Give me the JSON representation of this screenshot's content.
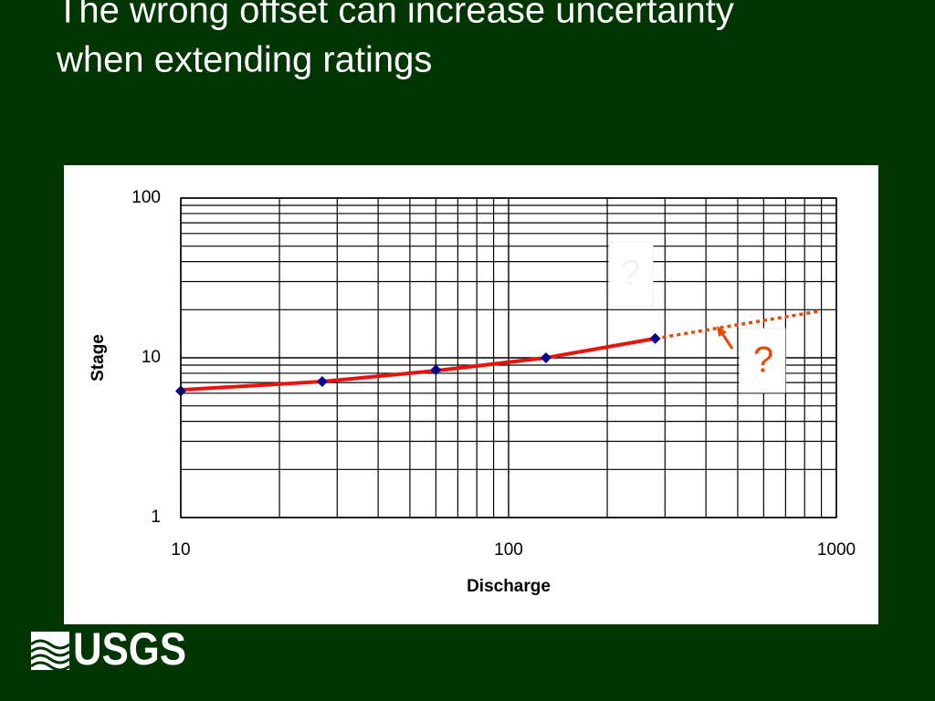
{
  "title_lines": [
    "The wrong offset can increase uncertainty",
    "when extending ratings"
  ],
  "logo_text": "USGS",
  "chart_data": {
    "type": "line",
    "x_label": "Discharge",
    "y_label": "Stage",
    "x_log": true,
    "y_log": true,
    "grid": true,
    "xlim": [
      10,
      1000
    ],
    "ylim": [
      1,
      100
    ],
    "xticks": [
      10,
      100,
      1000
    ],
    "yticks": [
      1,
      10,
      100
    ],
    "x_minor_grid": [
      20,
      30,
      40,
      50,
      60,
      70,
      80,
      90,
      200,
      300,
      400,
      500,
      600,
      700,
      800,
      900
    ],
    "y_minor_grid": [
      2,
      3,
      4,
      5,
      6,
      7,
      8,
      9,
      20,
      30,
      40,
      50,
      60,
      70,
      80,
      90
    ],
    "series": [
      {
        "style": "markers",
        "color": "#00008b",
        "x": [
          10,
          27,
          60,
          130,
          280
        ],
        "values": [
          6.2,
          7.1,
          8.4,
          10,
          13.2
        ]
      },
      {
        "style": "solid",
        "color": "#e8140c",
        "x": [
          10,
          27,
          60,
          130,
          280
        ],
        "values": [
          6.3,
          7.1,
          8.3,
          10,
          13.2
        ]
      },
      {
        "style": "dotted",
        "color": "#e8460c",
        "x": [
          280,
          890
        ],
        "values": [
          13.2,
          19.6
        ]
      }
    ],
    "annotations": [
      "?",
      "?"
    ]
  }
}
